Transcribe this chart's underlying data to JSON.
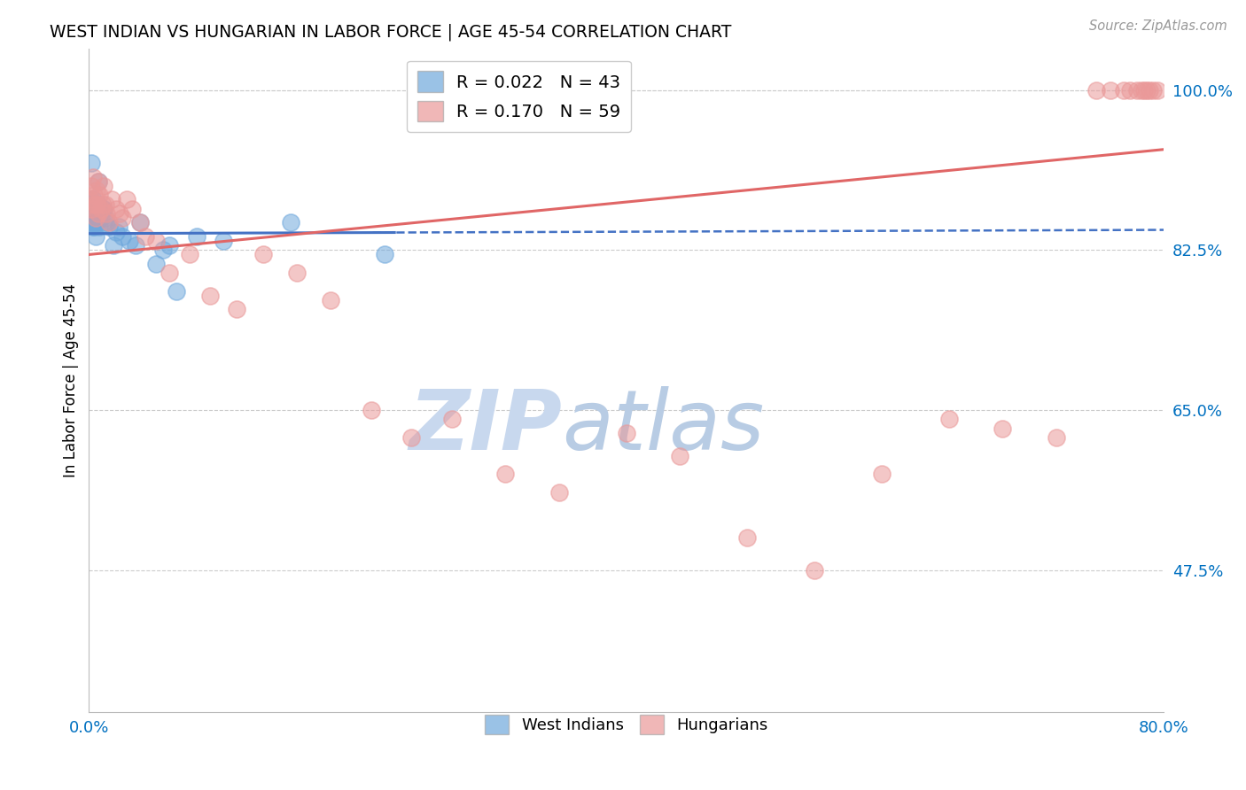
{
  "title": "WEST INDIAN VS HUNGARIAN IN LABOR FORCE | AGE 45-54 CORRELATION CHART",
  "source": "Source: ZipAtlas.com",
  "ylabel": "In Labor Force | Age 45-54",
  "xmin": 0.0,
  "xmax": 0.8,
  "ymin": 0.32,
  "ymax": 1.045,
  "yticks": [
    0.475,
    0.65,
    0.825,
    1.0
  ],
  "ytick_labels": [
    "47.5%",
    "65.0%",
    "82.5%",
    "100.0%"
  ],
  "legend_blue_label": "R = 0.022   N = 43",
  "legend_pink_label": "R = 0.170   N = 59",
  "blue_color": "#6fa8dc",
  "pink_color": "#ea9999",
  "blue_line_color": "#4472c4",
  "pink_line_color": "#e06666",
  "axis_label_color": "#0070c0",
  "watermark_zip_color": "#c8d8ee",
  "watermark_atlas_color": "#b8cce4",
  "wi_x": [
    0.001,
    0.001,
    0.002,
    0.002,
    0.002,
    0.003,
    0.003,
    0.003,
    0.003,
    0.004,
    0.004,
    0.004,
    0.005,
    0.005,
    0.005,
    0.005,
    0.006,
    0.006,
    0.007,
    0.007,
    0.008,
    0.008,
    0.009,
    0.01,
    0.011,
    0.012,
    0.013,
    0.015,
    0.018,
    0.02,
    0.022,
    0.025,
    0.03,
    0.035,
    0.038,
    0.05,
    0.055,
    0.06,
    0.065,
    0.08,
    0.1,
    0.15,
    0.22
  ],
  "wi_y": [
    0.855,
    0.88,
    0.86,
    0.875,
    0.92,
    0.85,
    0.87,
    0.88,
    0.855,
    0.86,
    0.875,
    0.85,
    0.865,
    0.87,
    0.855,
    0.84,
    0.87,
    0.855,
    0.9,
    0.875,
    0.86,
    0.85,
    0.86,
    0.87,
    0.87,
    0.86,
    0.855,
    0.85,
    0.83,
    0.845,
    0.85,
    0.84,
    0.835,
    0.83,
    0.855,
    0.81,
    0.825,
    0.83,
    0.78,
    0.84,
    0.835,
    0.855,
    0.82
  ],
  "hu_x": [
    0.001,
    0.002,
    0.002,
    0.003,
    0.003,
    0.004,
    0.005,
    0.005,
    0.006,
    0.006,
    0.007,
    0.007,
    0.008,
    0.009,
    0.01,
    0.011,
    0.012,
    0.013,
    0.015,
    0.017,
    0.02,
    0.023,
    0.025,
    0.028,
    0.032,
    0.038,
    0.042,
    0.05,
    0.06,
    0.075,
    0.09,
    0.11,
    0.13,
    0.155,
    0.18,
    0.21,
    0.24,
    0.27,
    0.31,
    0.35,
    0.4,
    0.44,
    0.49,
    0.54,
    0.59,
    0.64,
    0.68,
    0.72,
    0.75,
    0.76,
    0.77,
    0.775,
    0.78,
    0.783,
    0.785,
    0.787,
    0.789,
    0.792,
    0.795
  ],
  "hu_y": [
    0.88,
    0.895,
    0.87,
    0.905,
    0.875,
    0.885,
    0.875,
    0.86,
    0.89,
    0.875,
    0.9,
    0.865,
    0.885,
    0.87,
    0.875,
    0.895,
    0.875,
    0.865,
    0.855,
    0.88,
    0.87,
    0.865,
    0.86,
    0.88,
    0.87,
    0.855,
    0.84,
    0.835,
    0.8,
    0.82,
    0.775,
    0.76,
    0.82,
    0.8,
    0.77,
    0.65,
    0.62,
    0.64,
    0.58,
    0.56,
    0.625,
    0.6,
    0.51,
    0.475,
    0.58,
    0.64,
    0.63,
    0.62,
    1.0,
    1.0,
    1.0,
    1.0,
    1.0,
    1.0,
    1.0,
    1.0,
    1.0,
    1.0,
    1.0
  ]
}
